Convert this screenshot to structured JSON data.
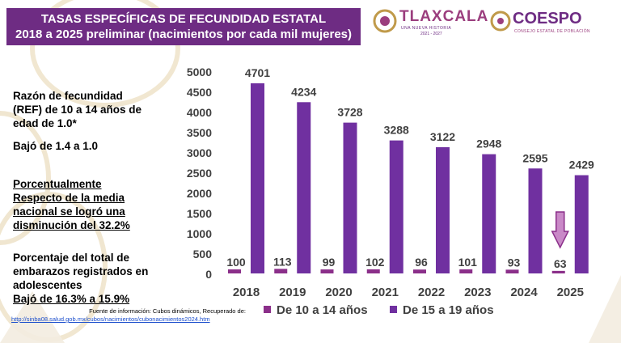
{
  "header": {
    "title_line1": "TASAS ESPECÍFICAS DE FECUNDIDAD ESTATAL",
    "title_line2": "2018 a 2025 preliminar (nacimientos por cada mil mujeres)"
  },
  "logos": {
    "tlaxcala_name": "TLAXCALA",
    "tlaxcala_sub": "UNA NUEVA HISTORIA",
    "tlaxcala_years": "2021 - 2027",
    "coespo_name": "COESPO",
    "coespo_sub": "CONSEJO ESTATAL DE POBLACIÓN"
  },
  "notes": {
    "ref_line1": "Razón de fecundidad",
    "ref_line2": "(REF) de 10 a 14 años de",
    "ref_line3": "edad de 1.0*",
    "ref_drop": "Bajó de 1.4 a 1.0",
    "pct_line1": "Porcentualmente",
    "pct_line2": "Respecto de la media",
    "pct_line3": "nacional se logró una",
    "pct_line4": "disminución del 32.2%",
    "emb_line1": "Porcentaje del total de",
    "emb_line2": "embarazos registrados en",
    "emb_line3": "adolescentes",
    "emb_line4": "Bajó de 16.3% a 15.9%"
  },
  "source": {
    "text": "Fuente de información: Cubos dinámicos, Recuperado de:",
    "link": "http://sinba08.salud.gob.mx/cubos/nacimientos/cubonacimientos2024.htm"
  },
  "colors": {
    "brand_purple": "#6e2c83",
    "series_10_14": "#8b2f8a",
    "series_15_19": "#7030a0",
    "accent_pink": "#9b3e7e",
    "arrow_fill": "#c989c7"
  },
  "chart_data": {
    "type": "bar",
    "categories": [
      "2018",
      "2019",
      "2020",
      "2021",
      "2022",
      "2023",
      "2024",
      "2025"
    ],
    "series": [
      {
        "name": "De 10 a 14 años",
        "values": [
          100,
          113,
          99,
          102,
          96,
          101,
          93,
          63
        ]
      },
      {
        "name": "De 15 a 19 años",
        "values": [
          4701,
          4234,
          3728,
          3288,
          3122,
          2948,
          2595,
          2429
        ]
      }
    ],
    "ylim": [
      0,
      5000
    ],
    "yticks": [
      0,
      500,
      1000,
      1500,
      2000,
      2500,
      3000,
      3500,
      4000,
      4500,
      5000
    ],
    "grid": false,
    "legend": "bottom",
    "annotation": "down-arrow over 2025"
  }
}
